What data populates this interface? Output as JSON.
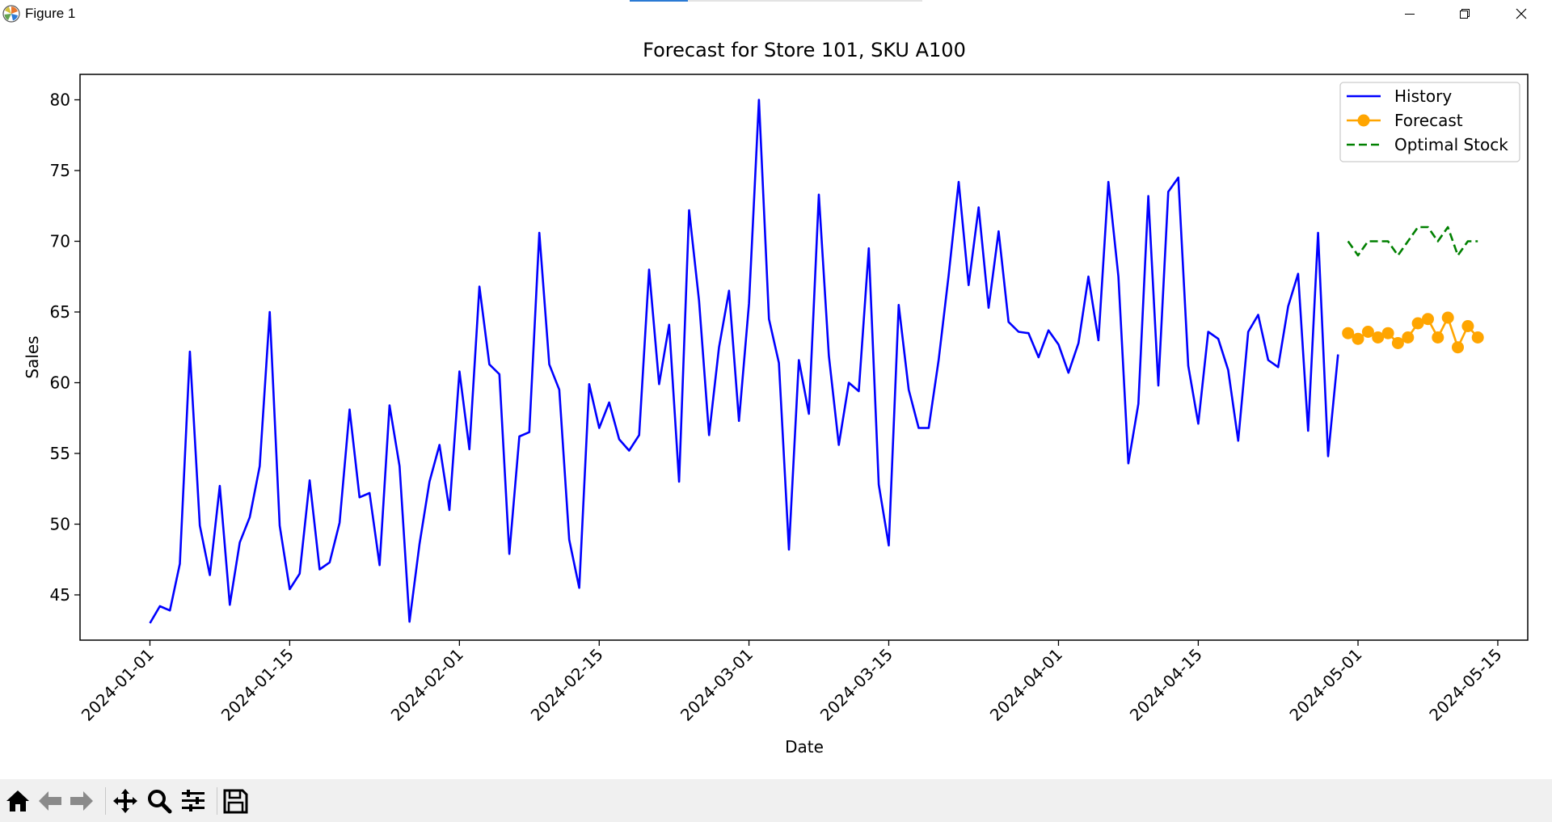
{
  "window": {
    "title": "Figure 1",
    "icons": {
      "app": "matplotlib-logo-icon",
      "minimize": "minimize-icon",
      "restore": "restore-icon",
      "close": "close-icon"
    }
  },
  "toolbar": {
    "buttons": [
      {
        "name": "home-button",
        "icon": "home-icon"
      },
      {
        "name": "back-button",
        "icon": "arrow-left-icon"
      },
      {
        "name": "forward-button",
        "icon": "arrow-right-icon"
      },
      {
        "name": "pan-button",
        "icon": "move-icon"
      },
      {
        "name": "zoom-button",
        "icon": "magnifier-icon"
      },
      {
        "name": "configure-subplots-button",
        "icon": "sliders-icon"
      },
      {
        "name": "save-button",
        "icon": "floppy-disk-icon"
      }
    ]
  },
  "chart_data": {
    "type": "line",
    "title": "Forecast for Store 101, SKU A100",
    "xlabel": "Date",
    "ylabel": "Sales",
    "xlim": [
      "2023-12-25",
      "2024-05-18"
    ],
    "ylim": [
      41.8,
      81.8
    ],
    "x_ticks": [
      "2024-01-01",
      "2024-01-15",
      "2024-02-01",
      "2024-02-15",
      "2024-03-01",
      "2024-03-15",
      "2024-04-01",
      "2024-04-15",
      "2024-05-01",
      "2024-05-15"
    ],
    "y_ticks": [
      45,
      50,
      55,
      60,
      65,
      70,
      75,
      80
    ],
    "grid": false,
    "legend": {
      "placement": "top-right",
      "entries": [
        "History",
        "Forecast",
        "Optimal Stock"
      ]
    },
    "series": [
      {
        "name": "History",
        "color": "#0000ff",
        "marker": "none",
        "linestyle": "solid",
        "start_date": "2024-01-01",
        "values": [
          43,
          44.2,
          43.9,
          47.2,
          62.2,
          49.9,
          46.4,
          52.7,
          44.3,
          48.7,
          50.5,
          54.1,
          65,
          49.9,
          45.4,
          46.5,
          53.1,
          46.8,
          47.3,
          50.1,
          58.1,
          51.9,
          52.2,
          47.1,
          58.4,
          54.1,
          43.1,
          48.6,
          53.0,
          55.6,
          51.0,
          60.8,
          55.3,
          66.8,
          61.3,
          60.6,
          47.9,
          56.2,
          56.5,
          70.6,
          61.3,
          59.5,
          48.9,
          45.5,
          59.9,
          56.8,
          58.6,
          56,
          55.2,
          56.3,
          68.0,
          59.9,
          64.1,
          53,
          72.2,
          65.8,
          56.3,
          62.5,
          66.5,
          57.3,
          65.6,
          80,
          64.5,
          61.4,
          48.2,
          61.6,
          57.8,
          73.3,
          61.9,
          55.6,
          60,
          59.4,
          69.5,
          52.8,
          48.5,
          65.5,
          59.5,
          56.8,
          56.8,
          61.6,
          67.6,
          74.2,
          66.9,
          72.4,
          65.3,
          70.7,
          64.3,
          63.6,
          63.5,
          61.8,
          63.7,
          62.7,
          60.7,
          62.8,
          67.5,
          63,
          74.2,
          67.5,
          54.3,
          58.5,
          73.2,
          59.8,
          73.5,
          74.5,
          61.2,
          57.1,
          63.6,
          63.1,
          60.9,
          55.9,
          63.6,
          64.8,
          61.6,
          61.1,
          65.4,
          67.7,
          56.6,
          70.6,
          54.8,
          62
        ]
      },
      {
        "name": "Forecast",
        "color": "#ffa500",
        "marker": "circle",
        "linestyle": "solid",
        "start_date": "2024-04-30",
        "values": [
          63.5,
          63.1,
          63.6,
          63.2,
          63.5,
          62.8,
          63.2,
          64.2,
          64.5,
          63.2,
          64.6,
          62.5,
          64.0,
          63.2
        ]
      },
      {
        "name": "Optimal Stock",
        "color": "#008000",
        "marker": "none",
        "linestyle": "dashed",
        "start_date": "2024-04-30",
        "values": [
          70,
          69,
          70,
          70,
          70,
          69,
          70,
          71,
          71,
          70,
          71,
          69,
          70,
          70
        ]
      }
    ]
  }
}
